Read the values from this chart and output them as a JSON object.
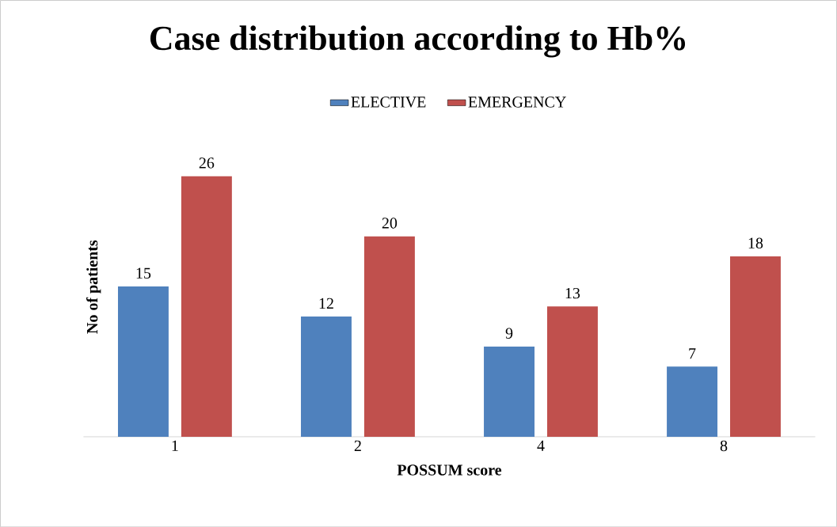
{
  "chart_data": {
    "type": "bar",
    "title": "Case distribution according to Hb%",
    "xlabel": "POSSUM score",
    "ylabel": "No of patients",
    "categories": [
      "1",
      "2",
      "4",
      "8"
    ],
    "series": [
      {
        "name": "ELECTIVE",
        "color": "#4f81bd",
        "values": [
          15,
          12,
          9,
          7
        ]
      },
      {
        "name": "EMERGENCY",
        "color": "#c0504d",
        "values": [
          26,
          20,
          13,
          18
        ]
      }
    ],
    "tick_labels": "x",
    "data_labels": true,
    "legend": "top"
  }
}
